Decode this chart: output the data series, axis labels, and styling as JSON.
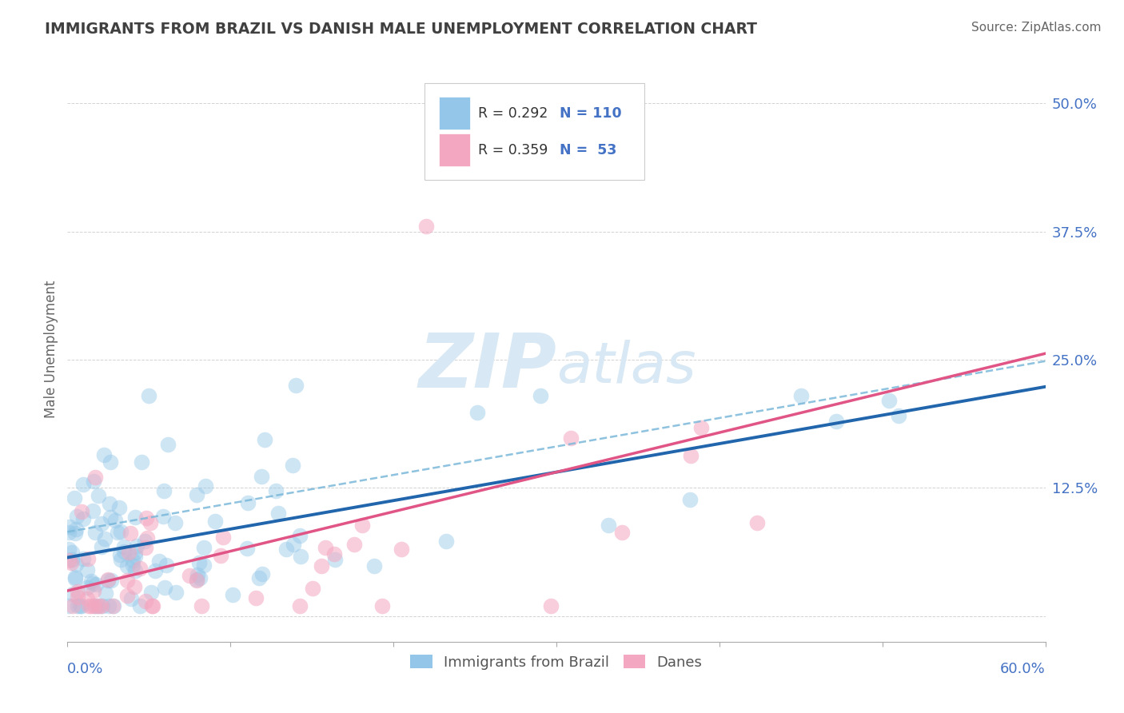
{
  "title": "IMMIGRANTS FROM BRAZIL VS DANISH MALE UNEMPLOYMENT CORRELATION CHART",
  "source": "Source: ZipAtlas.com",
  "ylabel": "Male Unemployment",
  "xmin": 0.0,
  "xmax": 0.6,
  "ymin": -0.025,
  "ymax": 0.545,
  "ytick_positions": [
    0.0,
    0.125,
    0.25,
    0.375,
    0.5
  ],
  "ytick_labels": [
    "",
    "12.5%",
    "25.0%",
    "37.5%",
    "50.0%"
  ],
  "color_blue": "#93c6e8",
  "color_pink": "#f4a7c0",
  "color_blue_line": "#2166ac",
  "color_pink_line": "#e05585",
  "color_blue_dash": "#7ab8d9",
  "watermark_color": "#d8e8f4",
  "background_color": "#ffffff",
  "grid_color": "#c8c8c8",
  "title_color": "#404040",
  "axis_label_color": "#4472c4",
  "legend_box_color": "#e8e8e8"
}
